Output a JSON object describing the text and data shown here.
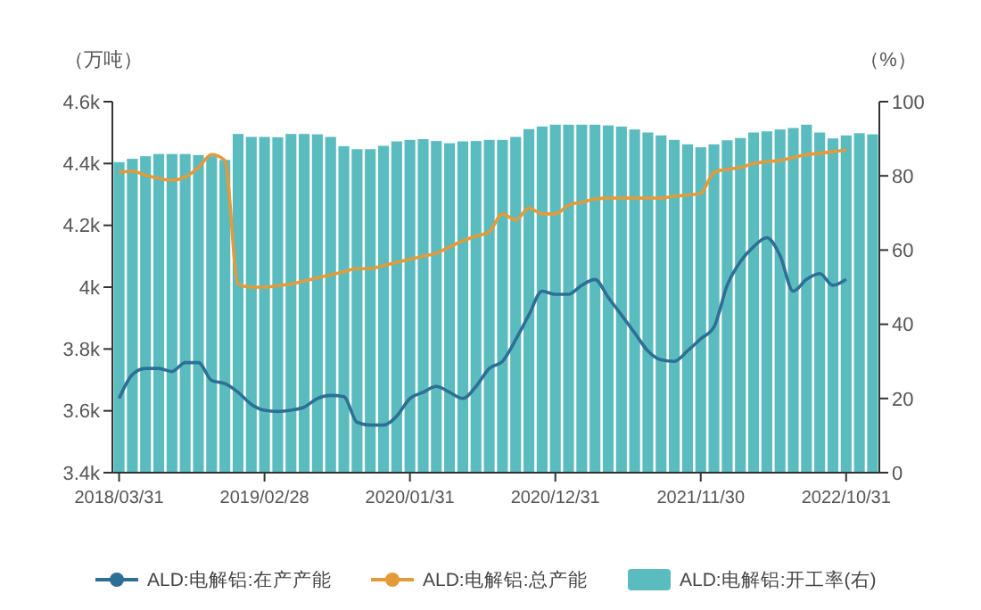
{
  "chart_data": {
    "type": "bar",
    "ylabel": "（万吨）",
    "y2label": "（%）",
    "categories": [
      "2018/03/31",
      null,
      null,
      null,
      null,
      null,
      null,
      null,
      null,
      null,
      null,
      "2019/02/28",
      null,
      null,
      null,
      null,
      null,
      null,
      null,
      null,
      null,
      null,
      "2020/01/31",
      null,
      null,
      null,
      null,
      null,
      null,
      null,
      null,
      null,
      null,
      "2020/12/31",
      null,
      null,
      null,
      null,
      null,
      null,
      null,
      null,
      null,
      null,
      "2021/11/30",
      null,
      null,
      null,
      null,
      null,
      null,
      null,
      null,
      null,
      null,
      "2022/10/31",
      null,
      null
    ],
    "ylim": [
      3400,
      4600
    ],
    "yticks": [
      {
        "value": 3400,
        "label": "3.4k"
      },
      {
        "value": 3600,
        "label": "3.6k"
      },
      {
        "value": 3800,
        "label": "3.8k"
      },
      {
        "value": 4000,
        "label": "4k"
      },
      {
        "value": 4200,
        "label": "4.2k"
      },
      {
        "value": 4400,
        "label": "4.4k"
      },
      {
        "value": 4600,
        "label": "4.6k"
      }
    ],
    "y2lim": [
      0,
      100
    ],
    "y2ticks": [
      0,
      20,
      40,
      60,
      80,
      100
    ],
    "legend": "bottom",
    "series": [
      {
        "name": "ALD:电解铝:在产产能",
        "type": "line",
        "color": "#2e6f96",
        "values": [
          3640,
          3717,
          3737,
          3737,
          3727,
          3756,
          3756,
          3698,
          3688,
          3660,
          3621,
          3602,
          3598,
          3602,
          3612,
          3640,
          3650,
          3646,
          3563,
          3554,
          3554,
          3583,
          3640,
          3660,
          3679,
          3660,
          3640,
          3679,
          3737,
          3760,
          3830,
          3910,
          3987,
          3977,
          3977,
          4006,
          4025,
          3967,
          3910,
          3852,
          3794,
          3765,
          3760,
          3794,
          3833,
          3871,
          4006,
          4083,
          4131,
          4160,
          4102,
          3987,
          4025,
          4044,
          4006,
          4025,
          null,
          null
        ]
      },
      {
        "name": "ALD:电解铝:总产能",
        "type": "line",
        "color": "#e39a3b",
        "values": [
          4371,
          4375,
          4362,
          4352,
          4346,
          4356,
          4387,
          4429,
          4410,
          4010,
          4000,
          4000,
          4005,
          4010,
          4020,
          4030,
          4040,
          4050,
          4060,
          4060,
          4070,
          4080,
          4090,
          4100,
          4110,
          4130,
          4150,
          4165,
          4179,
          4237,
          4217,
          4256,
          4237,
          4237,
          4265,
          4275,
          4285,
          4288,
          4288,
          4288,
          4288,
          4288,
          4294,
          4298,
          4304,
          4371,
          4381,
          4387,
          4400,
          4406,
          4410,
          4419,
          4429,
          4433,
          4438,
          4444,
          null,
          null
        ]
      },
      {
        "name": "ALD:电解铝:开工率(右)",
        "axis": "y2",
        "color": "#5bbcbf",
        "values": [
          83.7,
          84.6,
          85.3,
          85.9,
          85.9,
          85.9,
          85.6,
          85.3,
          84.3,
          91.3,
          90.5,
          90.5,
          90.4,
          91.3,
          91.3,
          91.2,
          90.5,
          88.0,
          87.2,
          87.2,
          88.1,
          89.3,
          89.7,
          89.9,
          89.4,
          88.8,
          89.3,
          89.4,
          89.7,
          89.7,
          90.5,
          92.6,
          93.3,
          93.8,
          93.8,
          93.8,
          93.8,
          93.6,
          93.3,
          92.5,
          91.7,
          90.9,
          89.7,
          88.5,
          87.7,
          88.5,
          89.6,
          90.2,
          91.7,
          92.0,
          92.5,
          92.9,
          93.8,
          91.7,
          90.1,
          90.9,
          91.5,
          91.2
        ]
      }
    ]
  }
}
